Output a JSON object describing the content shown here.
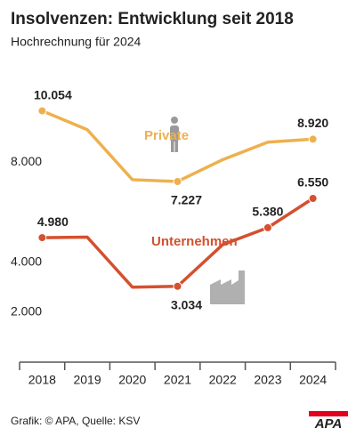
{
  "chart_data": {
    "type": "line",
    "title": "Insolvenzen: Entwicklung seit 2018",
    "subtitle": "Hochrechnung für 2024",
    "categories": [
      "2018",
      "2019",
      "2020",
      "2021",
      "2022",
      "2023",
      "2024"
    ],
    "series": [
      {
        "name": "Private",
        "color": "#eeb04e",
        "values": [
          10054,
          9300,
          7300,
          7227,
          8100,
          8800,
          8920
        ],
        "value_labels": [
          "10.054",
          null,
          null,
          "7.227",
          null,
          null,
          "8.920"
        ]
      },
      {
        "name": "Unternehmen",
        "color": "#d4502e",
        "values": [
          4980,
          5000,
          3000,
          3034,
          4700,
          5380,
          6550
        ],
        "value_labels": [
          "4.980",
          null,
          null,
          "3.034",
          null,
          "5.380",
          "6.550"
        ]
      }
    ],
    "ylim": [
      0,
      11000
    ],
    "yticks": [
      {
        "value": 2000,
        "label": "2.000"
      },
      {
        "value": 4000,
        "label": "4.000"
      },
      {
        "value": 8000,
        "label": "8.000"
      }
    ],
    "grid": false,
    "footer": "Grafik: © APA, Quelle: KSV",
    "logo": "APA"
  }
}
